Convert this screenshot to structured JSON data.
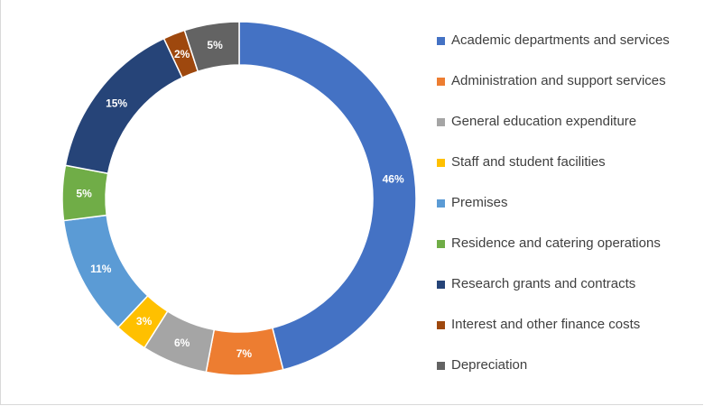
{
  "chart_data": {
    "type": "pie",
    "variant": "donut",
    "legend_position": "right",
    "title": "",
    "series": [
      {
        "name": "Academic departments and services",
        "value": 46,
        "label": "46%",
        "color": "#4472C4"
      },
      {
        "name": "Administration and support services",
        "value": 7,
        "label": "7%",
        "color": "#ED7D31"
      },
      {
        "name": "General education expenditure",
        "value": 6,
        "label": "6%",
        "color": "#A5A5A5"
      },
      {
        "name": "Staff and student facilities",
        "value": 3,
        "label": "3%",
        "color": "#FFC000"
      },
      {
        "name": "Premises",
        "value": 11,
        "label": "11%",
        "color": "#5B9BD5"
      },
      {
        "name": "Residence and catering operations",
        "value": 5,
        "label": "5%",
        "color": "#70AD47"
      },
      {
        "name": "Research grants and contracts",
        "value": 15,
        "label": "15%",
        "color": "#264478"
      },
      {
        "name": "Interest and other finance costs",
        "value": 2,
        "label": "2%",
        "color": "#9E480E"
      },
      {
        "name": "Depreciation",
        "value": 5,
        "label": "5%",
        "color": "#636363"
      }
    ]
  }
}
